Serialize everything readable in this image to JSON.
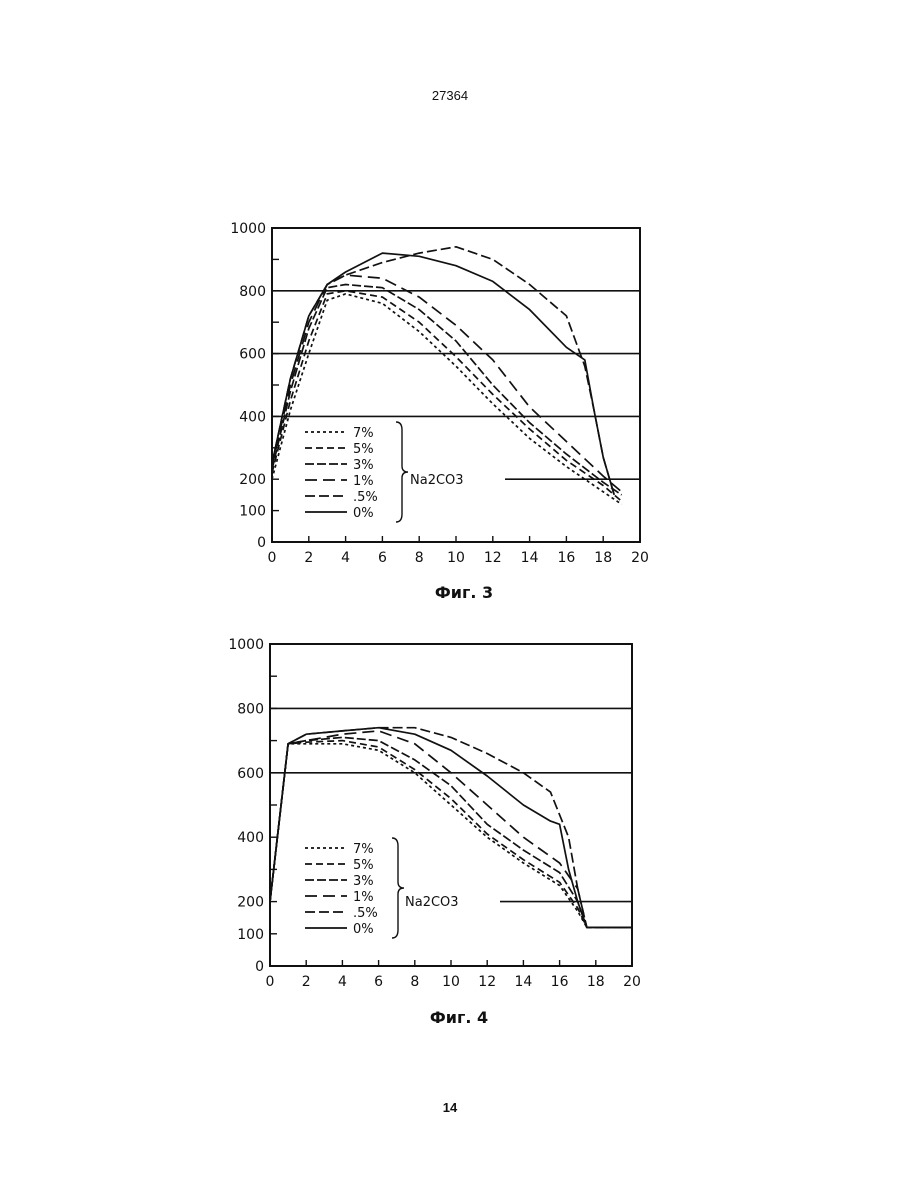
{
  "page": {
    "top_number": "27364",
    "bottom_number": "14"
  },
  "chart_data": [
    {
      "type": "line",
      "caption": "Фиг. 3",
      "xlim": [
        0,
        20
      ],
      "ylim": [
        0,
        1000
      ],
      "x_ticks": [
        0,
        2,
        4,
        6,
        8,
        10,
        12,
        14,
        16,
        18,
        20
      ],
      "y_ticks": [
        0,
        100,
        200,
        400,
        600,
        800,
        1000
      ],
      "y_tick_labels": [
        "0",
        "100",
        "200",
        "400",
        "600",
        "800",
        "1000"
      ],
      "reference_lines": [
        200,
        400,
        600,
        800
      ],
      "legend_group_label": "Na2CO3",
      "series": [
        {
          "name": "7%",
          "dash": "3,3",
          "points": [
            [
              0,
              200
            ],
            [
              1,
              420
            ],
            [
              2,
              600
            ],
            [
              3,
              770
            ],
            [
              4,
              790
            ],
            [
              6,
              760
            ],
            [
              8,
              670
            ],
            [
              10,
              560
            ],
            [
              12,
              440
            ],
            [
              14,
              330
            ],
            [
              16,
              240
            ],
            [
              18,
              160
            ],
            [
              19,
              120
            ]
          ]
        },
        {
          "name": "5%",
          "dash": "7,4",
          "points": [
            [
              0,
              220
            ],
            [
              1,
              450
            ],
            [
              2,
              640
            ],
            [
              3,
              790
            ],
            [
              4,
              800
            ],
            [
              6,
              780
            ],
            [
              8,
              700
            ],
            [
              10,
              590
            ],
            [
              12,
              470
            ],
            [
              14,
              360
            ],
            [
              16,
              260
            ],
            [
              18,
              180
            ],
            [
              19,
              130
            ]
          ]
        },
        {
          "name": "3%",
          "dash": "9,3",
          "points": [
            [
              0,
              230
            ],
            [
              1,
              480
            ],
            [
              2,
              680
            ],
            [
              3,
              810
            ],
            [
              4,
              820
            ],
            [
              6,
              810
            ],
            [
              8,
              740
            ],
            [
              10,
              640
            ],
            [
              12,
              500
            ],
            [
              14,
              380
            ],
            [
              16,
              280
            ],
            [
              18,
              190
            ],
            [
              19,
              150
            ]
          ]
        },
        {
          "name": "1%",
          "dash": "12,6",
          "points": [
            [
              0,
              240
            ],
            [
              1,
              500
            ],
            [
              2,
              700
            ],
            [
              3,
              820
            ],
            [
              4,
              850
            ],
            [
              6,
              840
            ],
            [
              8,
              780
            ],
            [
              10,
              690
            ],
            [
              12,
              580
            ],
            [
              14,
              430
            ],
            [
              16,
              320
            ],
            [
              18,
              210
            ],
            [
              19,
              160
            ]
          ]
        },
        {
          "name": ".5%",
          "dash": "10,4",
          "points": [
            [
              0,
              250
            ],
            [
              1,
              520
            ],
            [
              2,
              720
            ],
            [
              3,
              820
            ],
            [
              4,
              850
            ],
            [
              6,
              890
            ],
            [
              8,
              920
            ],
            [
              10,
              940
            ],
            [
              12,
              900
            ],
            [
              14,
              820
            ],
            [
              16,
              720
            ],
            [
              17,
              560
            ],
            [
              17.5,
              420
            ],
            [
              18,
              270
            ],
            [
              18.6,
              150
            ]
          ]
        },
        {
          "name": "0%",
          "dash": "",
          "points": [
            [
              0,
              250
            ],
            [
              1,
              520
            ],
            [
              2,
              720
            ],
            [
              3,
              820
            ],
            [
              4,
              860
            ],
            [
              6,
              920
            ],
            [
              8,
              910
            ],
            [
              10,
              880
            ],
            [
              12,
              830
            ],
            [
              14,
              740
            ],
            [
              16,
              620
            ],
            [
              17,
              580
            ],
            [
              17.5,
              420
            ],
            [
              18,
              270
            ],
            [
              18.6,
              150
            ]
          ]
        }
      ]
    },
    {
      "type": "line",
      "caption": "Фиг. 4",
      "xlim": [
        0,
        20
      ],
      "ylim": [
        0,
        1000
      ],
      "x_ticks": [
        0,
        2,
        4,
        6,
        8,
        10,
        12,
        14,
        16,
        18,
        20
      ],
      "y_ticks": [
        0,
        100,
        200,
        400,
        600,
        800,
        1000
      ],
      "y_tick_labels": [
        "0",
        "100",
        "200",
        "400",
        "600",
        "800",
        "1000"
      ],
      "reference_lines": [
        200,
        600,
        800
      ],
      "legend_group_label": "Na2CO3",
      "series": [
        {
          "name": "7%",
          "dash": "3,3",
          "points": [
            [
              0,
              200
            ],
            [
              1,
              690
            ],
            [
              2,
              690
            ],
            [
              4,
              690
            ],
            [
              6,
              670
            ],
            [
              8,
              600
            ],
            [
              10,
              500
            ],
            [
              12,
              400
            ],
            [
              14,
              320
            ],
            [
              16,
              250
            ],
            [
              17,
              170
            ],
            [
              17.5,
              120
            ],
            [
              20,
              120
            ]
          ]
        },
        {
          "name": "5%",
          "dash": "7,4",
          "points": [
            [
              0,
              200
            ],
            [
              1,
              690
            ],
            [
              2,
              695
            ],
            [
              4,
              700
            ],
            [
              6,
              680
            ],
            [
              8,
              610
            ],
            [
              10,
              520
            ],
            [
              12,
              410
            ],
            [
              14,
              330
            ],
            [
              16,
              260
            ],
            [
              17,
              180
            ],
            [
              17.5,
              120
            ],
            [
              20,
              120
            ]
          ]
        },
        {
          "name": "3%",
          "dash": "9,3",
          "points": [
            [
              0,
              200
            ],
            [
              1,
              690
            ],
            [
              2,
              700
            ],
            [
              4,
              710
            ],
            [
              6,
              700
            ],
            [
              8,
              640
            ],
            [
              10,
              560
            ],
            [
              12,
              440
            ],
            [
              14,
              360
            ],
            [
              16,
              290
            ],
            [
              17,
              200
            ],
            [
              17.5,
              120
            ],
            [
              20,
              120
            ]
          ]
        },
        {
          "name": "1%",
          "dash": "12,6",
          "points": [
            [
              0,
              200
            ],
            [
              1,
              690
            ],
            [
              2,
              700
            ],
            [
              4,
              720
            ],
            [
              6,
              730
            ],
            [
              8,
              690
            ],
            [
              10,
              600
            ],
            [
              12,
              500
            ],
            [
              14,
              400
            ],
            [
              16,
              320
            ],
            [
              17,
              240
            ],
            [
              17.5,
              120
            ],
            [
              20,
              120
            ]
          ]
        },
        {
          "name": ".5%",
          "dash": "10,4",
          "points": [
            [
              0,
              200
            ],
            [
              1,
              690
            ],
            [
              2,
              720
            ],
            [
              4,
              730
            ],
            [
              6,
              740
            ],
            [
              8,
              740
            ],
            [
              10,
              710
            ],
            [
              12,
              660
            ],
            [
              14,
              600
            ],
            [
              15.5,
              540
            ],
            [
              16.5,
              400
            ],
            [
              17,
              240
            ],
            [
              17.5,
              120
            ],
            [
              20,
              120
            ]
          ]
        },
        {
          "name": "0%",
          "dash": "",
          "points": [
            [
              0,
              200
            ],
            [
              1,
              690
            ],
            [
              2,
              720
            ],
            [
              4,
              730
            ],
            [
              6,
              740
            ],
            [
              8,
              720
            ],
            [
              10,
              670
            ],
            [
              12,
              590
            ],
            [
              14,
              500
            ],
            [
              15.5,
              450
            ],
            [
              16,
              440
            ],
            [
              16.5,
              300
            ],
            [
              17,
              200
            ],
            [
              17.5,
              120
            ],
            [
              20,
              120
            ]
          ]
        }
      ]
    }
  ]
}
